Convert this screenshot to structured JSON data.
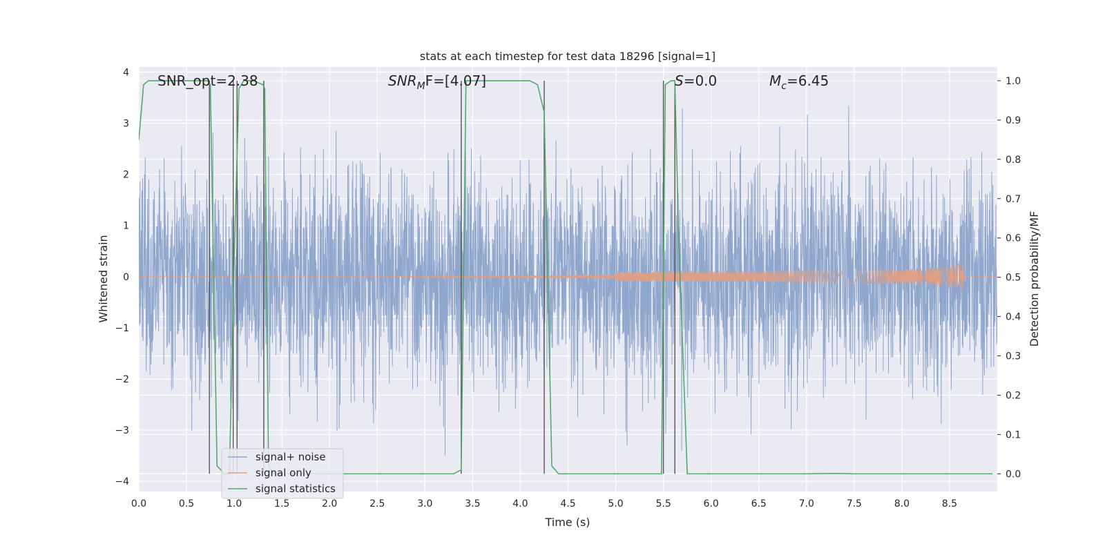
{
  "chart_data": {
    "type": "line",
    "title": "stats at each timestep for test data 18296 [signal=1]",
    "xlabel": "Time (s)",
    "ylabel": "Whitened strain",
    "y2label": "Detection probability/MF",
    "xlim": [
      0.0,
      9.0
    ],
    "ylim": [
      -4.2,
      4.1
    ],
    "y2lim": [
      -0.045,
      1.035
    ],
    "xticks": [
      "0.0",
      "0.5",
      "1.0",
      "1.5",
      "2.0",
      "2.5",
      "3.0",
      "3.5",
      "4.0",
      "4.5",
      "5.0",
      "5.5",
      "6.0",
      "6.5",
      "7.0",
      "7.5",
      "8.0",
      "8.5"
    ],
    "yticks": [
      "4",
      "3",
      "2",
      "1",
      "0",
      "−1",
      "−2",
      "−3",
      "−4"
    ],
    "y2ticks": [
      "1.0",
      "0.9",
      "0.8",
      "0.7",
      "0.6",
      "0.5",
      "0.4",
      "0.3",
      "0.2",
      "0.1",
      "0.0"
    ],
    "annotations": {
      "snr_opt": "SNR_opt=2.38",
      "snr_mf_sym": "SNR",
      "snr_mf_sub": "M",
      "snr_mf_rest": "F=[4.07]",
      "s_sym": "S",
      "s_rest": "=0.0",
      "mc_sym": "M",
      "mc_sub": "c",
      "mc_rest": "=6.45"
    },
    "legend": {
      "position": "lower-left",
      "entries": [
        "signal+ noise",
        "signal only",
        "signal statistics"
      ]
    },
    "colors": {
      "noise": "#8fa6cd",
      "signal": "#dd9f86",
      "stats": "#55a868",
      "vlines": "#555555",
      "background": "#eaeaf2"
    },
    "series": [
      {
        "name": "signal+ noise",
        "description_level": "Gaussian-like noise, amplitude mostly within ±2.5, peaks to about ±3.5",
        "envelope_min": -3.6,
        "envelope_max": 3.5
      },
      {
        "name": "signal only",
        "chirp_end_time": 8.65,
        "chirp_peak_amplitude": 0.35
      },
      {
        "name": "signal statistics",
        "x": [
          0.0,
          0.05,
          0.1,
          0.2,
          0.3,
          0.4,
          0.5,
          0.6,
          0.7,
          0.72,
          0.75,
          0.82,
          0.9,
          0.95,
          1.0,
          1.05,
          1.1,
          1.2,
          1.3,
          1.32,
          1.36,
          1.42,
          1.5,
          2.0,
          2.5,
          3.0,
          3.3,
          3.38,
          3.43,
          3.5,
          3.7,
          3.9,
          4.1,
          4.18,
          4.25,
          4.33,
          4.4,
          4.5,
          5.0,
          5.4,
          5.48,
          5.52,
          5.58,
          5.62,
          5.66,
          5.75,
          6.0,
          6.5,
          7.0,
          7.3,
          7.5,
          8.0,
          8.5,
          8.95
        ],
        "y": [
          0.85,
          0.99,
          1.0,
          1.0,
          1.0,
          1.0,
          1.0,
          1.0,
          1.0,
          1.0,
          0.99,
          0.02,
          0.0,
          0.0,
          0.55,
          0.98,
          1.0,
          1.0,
          0.99,
          0.98,
          0.02,
          0.0,
          0.0,
          0.0,
          0.0,
          0.0,
          0.0,
          0.01,
          1.0,
          1.0,
          1.0,
          1.0,
          1.0,
          0.99,
          0.92,
          0.02,
          0.0,
          0.0,
          0.0,
          0.0,
          0.0,
          0.99,
          1.0,
          1.0,
          0.6,
          0.0,
          0.0,
          0.0,
          0.0,
          0.001,
          0.0,
          0.0,
          0.0,
          0.0
        ]
      }
    ],
    "vertical_lines": [
      0.74,
      0.99,
      1.03,
      1.31,
      3.38,
      4.25,
      5.5,
      5.62
    ]
  }
}
